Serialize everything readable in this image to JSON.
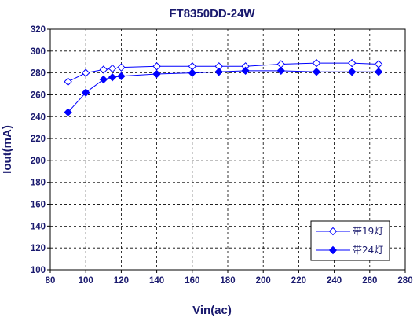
{
  "chart_data": {
    "type": "line",
    "title": "FT8350DD-24W",
    "xlabel": "Vin(ac)",
    "ylabel": "Iout(mA)",
    "xlim": [
      80,
      280
    ],
    "ylim": [
      100,
      320
    ],
    "xticks": [
      80,
      100,
      120,
      140,
      160,
      180,
      200,
      220,
      240,
      260,
      280
    ],
    "yticks": [
      100,
      120,
      140,
      160,
      180,
      200,
      220,
      240,
      260,
      280,
      300,
      320
    ],
    "grid": true,
    "legend_position": "bottom-right",
    "colors": {
      "series": "#0000ff",
      "text": "#1a1a6e",
      "axis": "#000000",
      "grid": "#000000"
    },
    "series": [
      {
        "name": "带19灯",
        "marker": "diamond-open",
        "x": [
          90,
          100,
          110,
          115,
          120,
          140,
          160,
          175,
          190,
          210,
          230,
          250,
          265
        ],
        "y": [
          272,
          280,
          283,
          284,
          285,
          286,
          286,
          286,
          286,
          288,
          289,
          289,
          288
        ]
      },
      {
        "name": "带24灯",
        "marker": "diamond-filled",
        "x": [
          90,
          100,
          110,
          115,
          120,
          140,
          160,
          175,
          190,
          210,
          230,
          250,
          265
        ],
        "y": [
          244,
          262,
          274,
          276,
          277,
          279,
          280,
          281,
          282,
          282,
          281,
          281,
          281
        ]
      }
    ]
  }
}
